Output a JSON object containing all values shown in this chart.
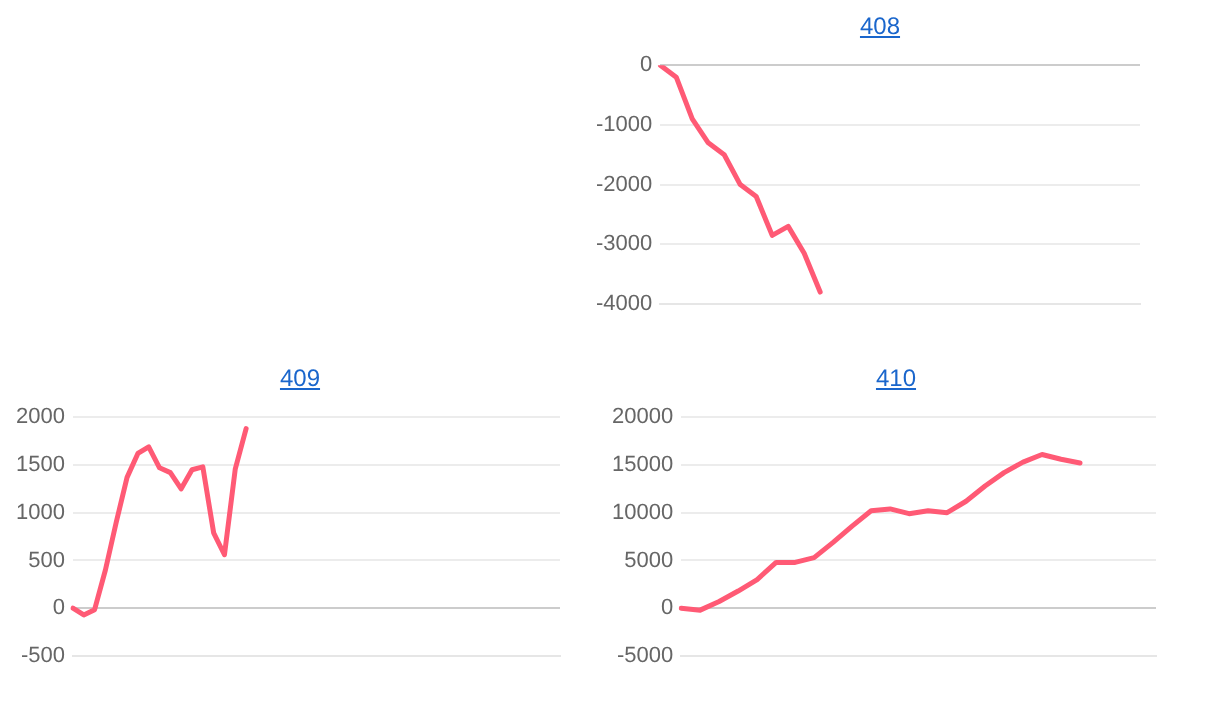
{
  "chart_data": [
    {
      "type": "line",
      "title": "408",
      "categories": [
        null,
        null,
        null,
        null,
        null,
        null,
        null,
        null,
        null,
        null,
        null,
        null,
        null,
        null,
        null,
        null,
        null,
        null,
        null,
        null,
        null,
        null,
        null,
        null,
        null,
        null,
        null,
        null,
        null,
        null,
        null
      ],
      "series": [
        {
          "color": "#ff5a75",
          "values": [
            0,
            -200,
            -900,
            -1300,
            -1500,
            -2000,
            -2200,
            -2850,
            -2700,
            -3150,
            -3800,
            null,
            null,
            null,
            null,
            null,
            null,
            null,
            null,
            null,
            null,
            null,
            null,
            null,
            null,
            null,
            null,
            null,
            null,
            null,
            null
          ]
        }
      ],
      "ylim": [
        -4000,
        0
      ],
      "yticks": [
        -4000,
        -3000,
        -2000,
        -1000,
        0
      ],
      "grid": "y",
      "legend": false,
      "tick_labels": "y",
      "marker": "none"
    },
    {
      "type": "line",
      "title": "409",
      "categories": [
        null,
        null,
        null,
        null,
        null,
        null,
        null,
        null,
        null,
        null,
        null,
        null,
        null,
        null,
        null,
        null,
        null,
        null,
        null,
        null,
        null,
        null,
        null,
        null,
        null,
        null,
        null,
        null,
        null,
        null,
        null,
        null,
        null,
        null,
        null,
        null,
        null,
        null,
        null,
        null,
        null,
        null,
        null,
        null,
        null,
        null
      ],
      "series": [
        {
          "color": "#ff5a75",
          "values": [
            0,
            -70,
            -15,
            400,
            900,
            1370,
            1620,
            1690,
            1470,
            1420,
            1250,
            1450,
            1480,
            790,
            560,
            1460,
            1880,
            null,
            null,
            null,
            null,
            null,
            null,
            null,
            null,
            null,
            null,
            null,
            null,
            null,
            null,
            null,
            null,
            null,
            null,
            null,
            null,
            null,
            null,
            null,
            null,
            null,
            null,
            null,
            null,
            null
          ]
        }
      ],
      "ylim": [
        -500,
        2000
      ],
      "yticks": [
        -500,
        0,
        500,
        1000,
        1500,
        2000
      ],
      "grid": "y",
      "legend": false,
      "tick_labels": "y",
      "marker": "none"
    },
    {
      "type": "line",
      "title": "410",
      "categories": [
        null,
        null,
        null,
        null,
        null,
        null,
        null,
        null,
        null,
        null,
        null,
        null,
        null,
        null,
        null,
        null,
        null,
        null,
        null,
        null,
        null,
        null,
        null,
        null,
        null,
        null
      ],
      "series": [
        {
          "color": "#ff5a75",
          "values": [
            0,
            -200,
            700,
            1800,
            3000,
            4800,
            4800,
            5300,
            6900,
            8600,
            10200,
            10400,
            9900,
            10200,
            10000,
            11200,
            12800,
            14200,
            15300,
            16100,
            15600,
            15200,
            null,
            null,
            null,
            null
          ]
        }
      ],
      "ylim": [
        -5000,
        20000
      ],
      "yticks": [
        -5000,
        0,
        5000,
        10000,
        15000,
        20000
      ],
      "grid": "y",
      "legend": false,
      "tick_labels": "y",
      "marker": "none"
    }
  ]
}
